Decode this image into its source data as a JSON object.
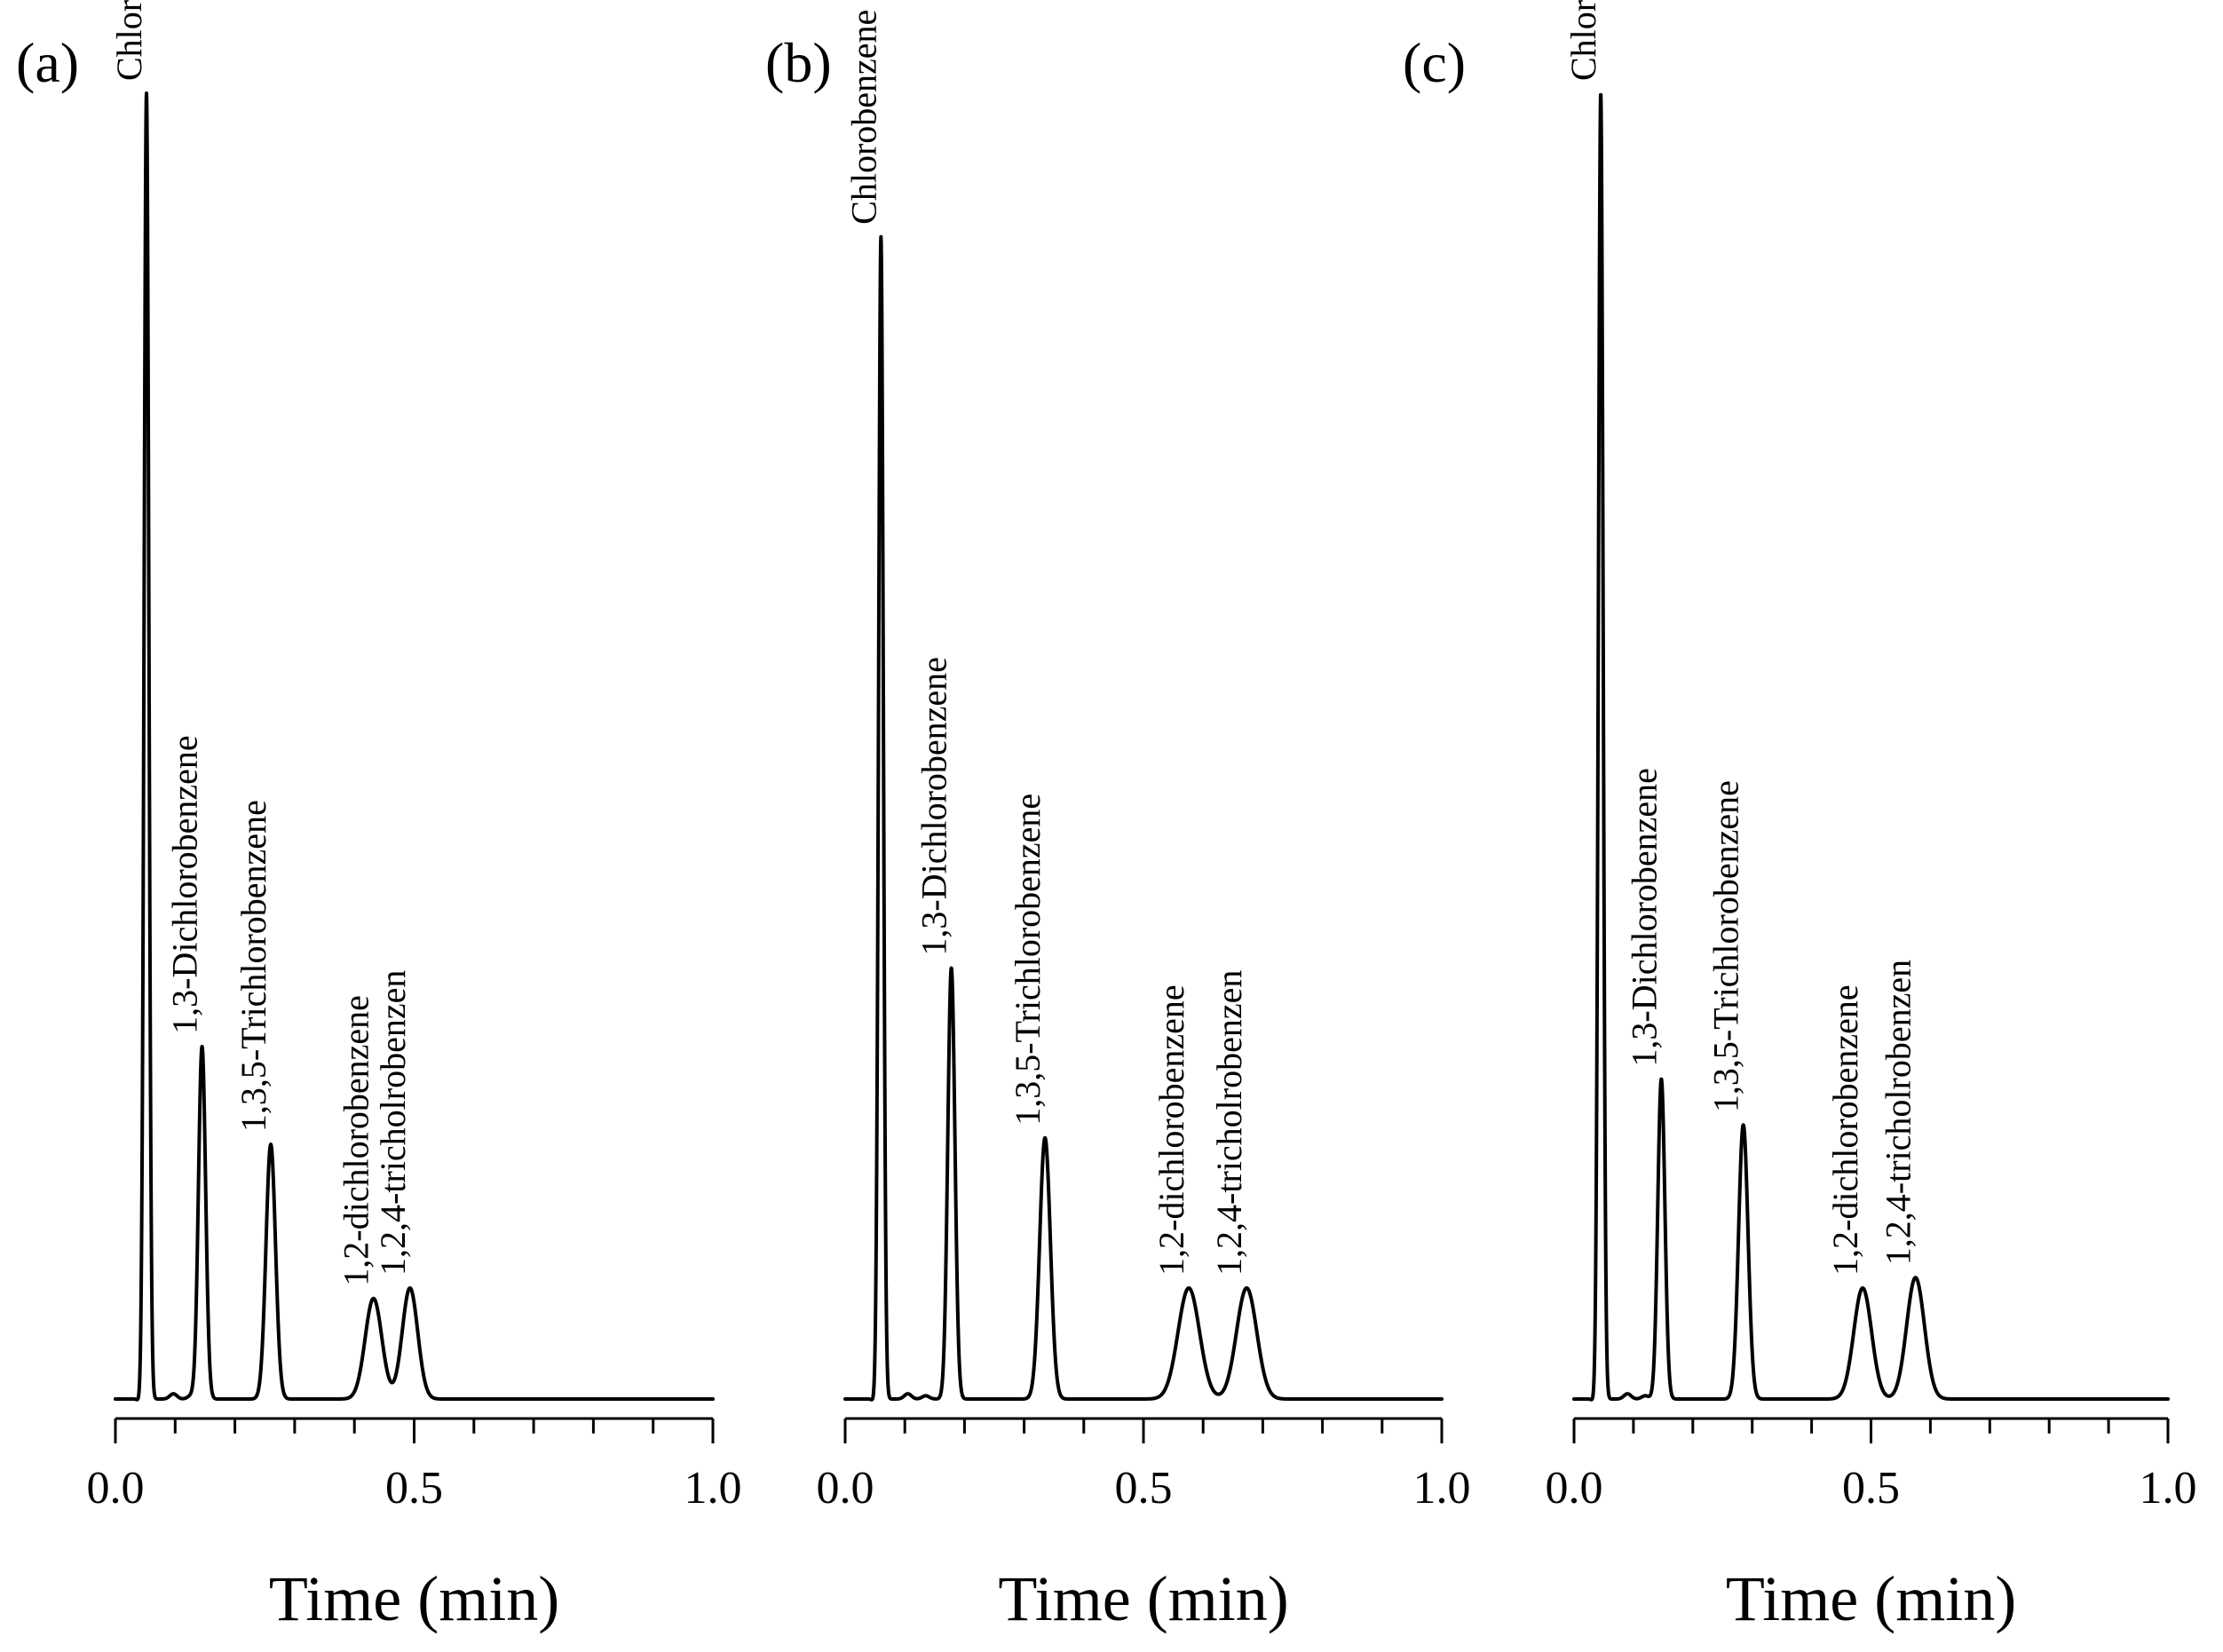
{
  "chart_data": [
    {
      "type": "line",
      "panel": "(a)",
      "xlabel": "Time (min)",
      "ylabel": "",
      "xlim": [
        0.0,
        1.0
      ],
      "xticks": [
        "0.0",
        "0.5",
        "1.0"
      ],
      "peaks": [
        {
          "name": "Chlorobenzene",
          "time": 0.052,
          "height": 1.0,
          "width": 0.004
        },
        {
          "name": "1,3-Dichlorobenzene",
          "time": 0.145,
          "height": 0.27,
          "width": 0.006
        },
        {
          "name": "1,3,5-Trichlorobenzene",
          "time": 0.26,
          "height": 0.195,
          "width": 0.008
        },
        {
          "name": "1,2-dichlorobenzene",
          "time": 0.432,
          "height": 0.077,
          "width": 0.014
        },
        {
          "name": "1,2,4-tricholrobenzen",
          "time": 0.493,
          "height": 0.085,
          "width": 0.013
        }
      ]
    },
    {
      "type": "line",
      "panel": "(b)",
      "xlabel": "Time (min)",
      "ylabel": "",
      "xlim": [
        0.0,
        1.0
      ],
      "xticks": [
        "0.0",
        "0.5",
        "1.0"
      ],
      "peaks": [
        {
          "name": "Chlorobenzene",
          "time": 0.06,
          "height": 0.89,
          "width": 0.004
        },
        {
          "name": "1,3-Dichlorobenzene",
          "time": 0.178,
          "height": 0.33,
          "width": 0.006
        },
        {
          "name": "1,3,5-Trichlorobenzene",
          "time": 0.335,
          "height": 0.2,
          "width": 0.009
        },
        {
          "name": "1,2-dichlorobenzene",
          "time": 0.576,
          "height": 0.085,
          "width": 0.018
        },
        {
          "name": "1,2,4-tricholrobenzen",
          "time": 0.673,
          "height": 0.085,
          "width": 0.017
        }
      ]
    },
    {
      "type": "line",
      "panel": "(c)",
      "xlabel": "Time (min)",
      "ylabel": "",
      "xlim": [
        0.0,
        1.0
      ],
      "xticks": [
        "0.0",
        "0.5",
        "1.0"
      ],
      "peaks": [
        {
          "name": "Chlorobenzene",
          "time": 0.045,
          "height": 1.0,
          "width": 0.004
        },
        {
          "name": "1,3-Dichlorobenzene",
          "time": 0.147,
          "height": 0.245,
          "width": 0.006
        },
        {
          "name": "1,3,5-Trichlorobenzene",
          "time": 0.285,
          "height": 0.21,
          "width": 0.008
        },
        {
          "name": "1,2-dichlorobenzene",
          "time": 0.486,
          "height": 0.085,
          "width": 0.015
        },
        {
          "name": "1,2,4-tricholrobenzen",
          "time": 0.575,
          "height": 0.093,
          "width": 0.015
        }
      ]
    }
  ]
}
